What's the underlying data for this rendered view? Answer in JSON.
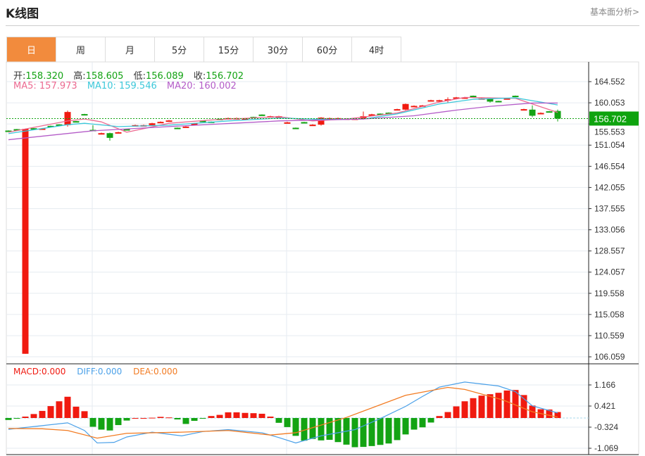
{
  "header": {
    "title": "K线图",
    "link": "基本面分析>"
  },
  "tabs": [
    {
      "label": "日",
      "active": true
    },
    {
      "label": "周"
    },
    {
      "label": "月"
    },
    {
      "label": "5分"
    },
    {
      "label": "15分"
    },
    {
      "label": "30分"
    },
    {
      "label": "60分"
    },
    {
      "label": "4时"
    }
  ],
  "ohlc": {
    "open_label": "开:",
    "open": "158.320",
    "high_label": "高:",
    "high": "158.605",
    "low_label": "低:",
    "low": "156.089",
    "close_label": "收:",
    "close": "156.702"
  },
  "ma": {
    "ma5_label": "MA5:",
    "ma5": "157.973",
    "ma10_label": "MA10:",
    "ma10": "159.546",
    "ma20_label": "MA20:",
    "ma20": "160.002"
  },
  "macd_info": {
    "macd": "MACD:0.000",
    "diff": "DIFF:0.000",
    "dea": "DEA:0.000"
  },
  "colors": {
    "up": "#f01a10",
    "down": "#13a313",
    "ma5": "#ec6a91",
    "ma10": "#3cc8da",
    "ma20": "#b45cc8",
    "diff": "#4aa0e8",
    "dea": "#f27b22",
    "accent": "#f28b3d",
    "price_tag": "#0ea30e"
  },
  "chart_data": [
    {
      "type": "candlestick",
      "ylim": [
        106.059,
        164.552
      ],
      "y_ticks": [
        "164.552",
        "160.053",
        "155.553",
        "151.054",
        "146.554",
        "142.055",
        "137.555",
        "133.056",
        "128.557",
        "124.057",
        "119.558",
        "115.058",
        "110.559",
        "106.059"
      ],
      "last_price": "156.702",
      "candles": [
        [
          154.15,
          154.2,
          154.0,
          154.1
        ],
        [
          154.45,
          154.5,
          154.3,
          154.4
        ],
        [
          106.7,
          154.6,
          106.7,
          154.5
        ],
        [
          154.65,
          154.7,
          154.5,
          154.6
        ],
        [
          154.55,
          154.7,
          154.5,
          154.6
        ],
        [
          155.15,
          155.2,
          155.0,
          155.1
        ],
        [
          155.45,
          155.5,
          155.3,
          155.4
        ],
        [
          155.3,
          158.4,
          155.0,
          158.1
        ],
        [
          156.15,
          156.2,
          156.0,
          156.1
        ],
        [
          157.65,
          157.7,
          157.5,
          157.6
        ],
        [
          154.3,
          155.3,
          154.0,
          154.2
        ],
        [
          153.55,
          153.7,
          153.5,
          153.6
        ],
        [
          153.6,
          153.7,
          152.0,
          152.6
        ],
        [
          153.75,
          153.9,
          153.7,
          153.8
        ],
        [
          154.45,
          154.5,
          154.3,
          154.4
        ],
        [
          155.25,
          155.4,
          155.2,
          155.3
        ],
        [
          155.25,
          155.4,
          155.2,
          155.3
        ],
        [
          155.3,
          155.8,
          155.2,
          155.7
        ],
        [
          155.95,
          156.1,
          155.9,
          156.0
        ],
        [
          156.25,
          156.4,
          156.2,
          156.3
        ],
        [
          154.75,
          154.8,
          154.6,
          154.7
        ],
        [
          154.95,
          155.1,
          154.9,
          155.0
        ],
        [
          155.3,
          155.8,
          155.2,
          155.7
        ],
        [
          156.25,
          156.3,
          156.1,
          156.2
        ],
        [
          156.05,
          156.1,
          155.9,
          156.0
        ],
        [
          156.65,
          156.7,
          156.5,
          156.6
        ],
        [
          156.75,
          156.9,
          156.7,
          156.8
        ],
        [
          156.75,
          156.9,
          156.7,
          156.8
        ],
        [
          156.65,
          156.8,
          156.6,
          156.7
        ],
        [
          157.05,
          157.1,
          156.9,
          157.0
        ],
        [
          157.55,
          157.6,
          157.4,
          157.5
        ],
        [
          157.15,
          157.3,
          157.1,
          157.2
        ],
        [
          156.8,
          157.3,
          156.7,
          157.2
        ],
        [
          155.85,
          156.0,
          155.8,
          155.9
        ],
        [
          154.75,
          154.8,
          154.6,
          154.7
        ],
        [
          155.95,
          156.0,
          155.8,
          155.9
        ],
        [
          155.35,
          155.5,
          155.3,
          155.4
        ],
        [
          155.4,
          157.0,
          155.2,
          156.9
        ],
        [
          156.75,
          156.9,
          156.7,
          156.8
        ],
        [
          156.75,
          156.9,
          156.7,
          156.8
        ],
        [
          156.65,
          156.8,
          156.6,
          156.7
        ],
        [
          156.65,
          156.8,
          156.6,
          156.7
        ],
        [
          156.6,
          158.2,
          156.5,
          157.2
        ],
        [
          157.55,
          157.7,
          157.5,
          157.6
        ],
        [
          157.75,
          157.8,
          157.6,
          157.7
        ],
        [
          157.95,
          158.0,
          157.8,
          157.9
        ],
        [
          158.65,
          158.8,
          158.6,
          158.7
        ],
        [
          158.6,
          159.9,
          158.5,
          159.8
        ],
        [
          159.35,
          159.5,
          159.3,
          159.4
        ],
        [
          159.45,
          159.6,
          159.4,
          159.5
        ],
        [
          160.55,
          160.7,
          160.5,
          160.6
        ],
        [
          160.55,
          160.7,
          160.5,
          160.6
        ],
        [
          160.75,
          161.2,
          160.0,
          160.8
        ],
        [
          161.15,
          161.3,
          161.1,
          161.2
        ],
        [
          161.15,
          161.3,
          161.1,
          161.2
        ],
        [
          161.55,
          161.6,
          161.4,
          161.5
        ],
        [
          160.95,
          161.1,
          160.9,
          161.0
        ],
        [
          161.0,
          161.1,
          160.1,
          160.3
        ],
        [
          160.45,
          160.5,
          160.3,
          160.4
        ],
        [
          160.95,
          161.1,
          160.9,
          161.0
        ],
        [
          161.55,
          161.6,
          161.4,
          161.5
        ],
        [
          158.65,
          158.8,
          158.6,
          158.7
        ],
        [
          158.6,
          159.5,
          157.0,
          157.3
        ],
        [
          157.85,
          158.0,
          157.8,
          157.9
        ],
        [
          158.25,
          158.3,
          158.1,
          158.2
        ],
        [
          158.32,
          158.605,
          156.089,
          156.702
        ]
      ],
      "ma5": [
        [
          0,
          153.8
        ],
        [
          7,
          156.2
        ],
        [
          9,
          156.6
        ],
        [
          11,
          156.0
        ],
        [
          14,
          153.8
        ],
        [
          19,
          155.7
        ],
        [
          24,
          156.4
        ],
        [
          32,
          157.1
        ],
        [
          36,
          156.2
        ],
        [
          40,
          156.6
        ],
        [
          46,
          157.9
        ],
        [
          51,
          160.2
        ],
        [
          54,
          161.2
        ],
        [
          60,
          161.0
        ],
        [
          62,
          159.8
        ],
        [
          65,
          158.0
        ]
      ],
      "ma10": [
        [
          0,
          153.5
        ],
        [
          7,
          155.4
        ],
        [
          9,
          155.7
        ],
        [
          13,
          155.0
        ],
        [
          19,
          155.3
        ],
        [
          26,
          156.2
        ],
        [
          32,
          156.8
        ],
        [
          38,
          156.5
        ],
        [
          42,
          156.6
        ],
        [
          46,
          157.7
        ],
        [
          51,
          159.8
        ],
        [
          55,
          160.8
        ],
        [
          60,
          161.1
        ],
        [
          65,
          159.6
        ]
      ],
      "ma20": [
        [
          0,
          152.2
        ],
        [
          10,
          154.1
        ],
        [
          19,
          155.0
        ],
        [
          32,
          156.2
        ],
        [
          42,
          156.6
        ],
        [
          48,
          157.3
        ],
        [
          53,
          158.5
        ],
        [
          57,
          159.3
        ],
        [
          62,
          160.0
        ],
        [
          65,
          160.0
        ]
      ]
    },
    {
      "type": "bar+line",
      "y_ticks": [
        "1.166",
        "0.421",
        "-0.324",
        "-1.069"
      ],
      "macd": [
        -0.07,
        -0.02,
        0.05,
        0.14,
        0.25,
        0.42,
        0.59,
        0.75,
        0.4,
        0.24,
        -0.31,
        -0.41,
        -0.44,
        -0.25,
        -0.09,
        0.0,
        0.0,
        0.01,
        0.04,
        0.02,
        -0.05,
        -0.21,
        -0.1,
        -0.02,
        0.07,
        0.11,
        0.2,
        0.2,
        0.18,
        0.17,
        0.15,
        0.05,
        -0.17,
        -0.32,
        -0.63,
        -0.8,
        -0.74,
        -0.79,
        -0.77,
        -0.85,
        -0.94,
        -1.03,
        -1.02,
        -0.99,
        -0.95,
        -0.9,
        -0.78,
        -0.58,
        -0.41,
        -0.33,
        -0.16,
        0.07,
        0.21,
        0.41,
        0.59,
        0.7,
        0.79,
        0.84,
        0.89,
        0.97,
        0.99,
        0.81,
        0.44,
        0.31,
        0.3,
        0.21
      ],
      "diff": [
        [
          0,
          -0.4
        ],
        [
          7,
          -0.17
        ],
        [
          9,
          -0.44
        ],
        [
          10.5,
          -0.88
        ],
        [
          12.5,
          -0.86
        ],
        [
          14,
          -0.67
        ],
        [
          17,
          -0.5
        ],
        [
          20.5,
          -0.63
        ],
        [
          23,
          -0.48
        ],
        [
          26,
          -0.41
        ],
        [
          30,
          -0.52
        ],
        [
          32,
          -0.69
        ],
        [
          34,
          -0.88
        ],
        [
          37,
          -0.63
        ],
        [
          41,
          -0.41
        ],
        [
          44,
          -0.02
        ],
        [
          47,
          0.41
        ],
        [
          49,
          0.76
        ],
        [
          51,
          1.09
        ],
        [
          54,
          1.27
        ],
        [
          58,
          1.13
        ],
        [
          60,
          0.93
        ],
        [
          62,
          0.43
        ],
        [
          65,
          0.18
        ]
      ],
      "dea": [
        [
          0,
          -0.37
        ],
        [
          4,
          -0.38
        ],
        [
          7,
          -0.44
        ],
        [
          10.5,
          -0.71
        ],
        [
          14,
          -0.54
        ],
        [
          20.5,
          -0.5
        ],
        [
          26,
          -0.44
        ],
        [
          31,
          -0.6
        ],
        [
          34,
          -0.52
        ],
        [
          40,
          0.02
        ],
        [
          47,
          0.8
        ],
        [
          52,
          1.08
        ],
        [
          54,
          1.01
        ],
        [
          58.5,
          0.64
        ],
        [
          62,
          0.22
        ],
        [
          65,
          0.03
        ]
      ]
    }
  ]
}
